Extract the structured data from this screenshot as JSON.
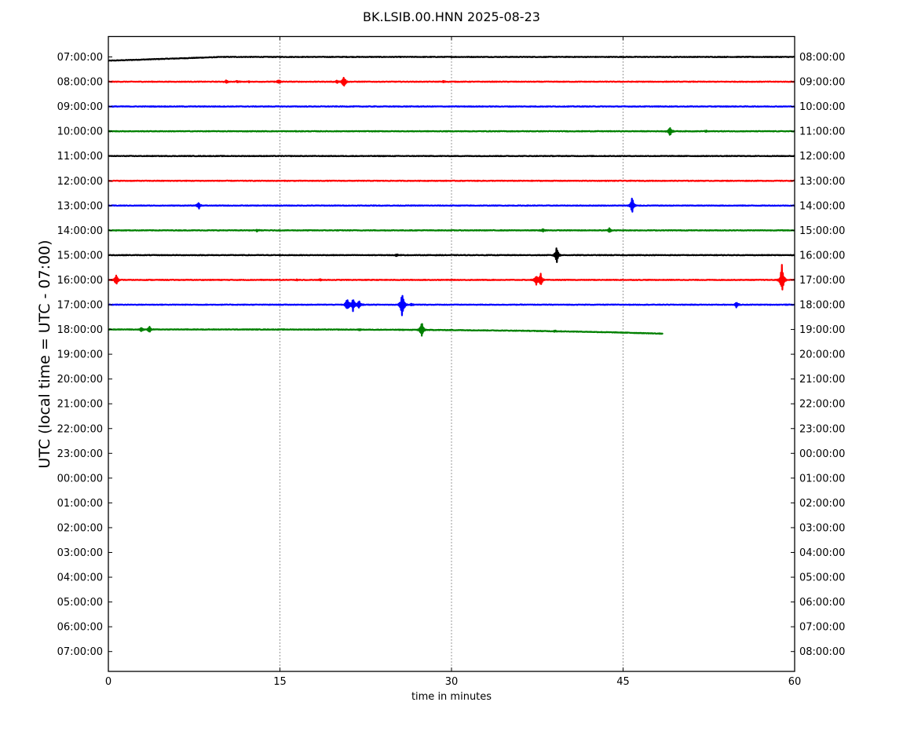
{
  "chart_data": {
    "type": "line",
    "title": "BK.LSIB.00.HNN 2025-08-23",
    "xlabel": "time in minutes",
    "ylabel": "UTC (local time = UTC - 07:00)",
    "xlim": [
      0,
      60
    ],
    "x_ticks": [
      0,
      15,
      30,
      45,
      60
    ],
    "x_tick_labels": [
      "0",
      "15",
      "30",
      "45",
      "60"
    ],
    "grid": "vertical dotted lines at 15, 30, 45",
    "left_tick_labels": [
      "07:00:00",
      "08:00:00",
      "09:00:00",
      "10:00:00",
      "11:00:00",
      "12:00:00",
      "13:00:00",
      "14:00:00",
      "15:00:00",
      "16:00:00",
      "17:00:00",
      "18:00:00",
      "19:00:00",
      "20:00:00",
      "21:00:00",
      "22:00:00",
      "23:00:00",
      "00:00:00",
      "01:00:00",
      "02:00:00",
      "03:00:00",
      "04:00:00",
      "05:00:00",
      "06:00:00",
      "07:00:00"
    ],
    "right_tick_labels": [
      "08:00:00",
      "09:00:00",
      "10:00:00",
      "11:00:00",
      "12:00:00",
      "13:00:00",
      "14:00:00",
      "15:00:00",
      "16:00:00",
      "17:00:00",
      "18:00:00",
      "19:00:00",
      "20:00:00",
      "21:00:00",
      "22:00:00",
      "23:00:00",
      "00:00:00",
      "01:00:00",
      "02:00:00",
      "03:00:00",
      "04:00:00",
      "05:00:00",
      "06:00:00",
      "07:00:00",
      "08:00:00"
    ],
    "series": [
      {
        "row": 0,
        "color": "#000000",
        "x_end": 60,
        "drift_start": -0.4,
        "drift_end": 0,
        "events": []
      },
      {
        "row": 1,
        "color": "#ff0000",
        "x_end": 60,
        "drift_start": 0,
        "drift_end": 0,
        "events": [
          [
            10.3,
            0.15
          ],
          [
            11.3,
            0.1
          ],
          [
            12.3,
            0.08
          ],
          [
            14.9,
            0.2
          ],
          [
            20.0,
            0.12
          ],
          [
            20.6,
            0.7
          ],
          [
            29.3,
            0.1
          ]
        ]
      },
      {
        "row": 2,
        "color": "#0000ff",
        "x_end": 60,
        "drift_start": 0,
        "drift_end": 0,
        "events": []
      },
      {
        "row": 3,
        "color": "#008000",
        "x_end": 60,
        "drift_start": 0,
        "drift_end": 0,
        "events": [
          [
            49.1,
            0.5
          ],
          [
            52.3,
            0.08
          ]
        ]
      },
      {
        "row": 4,
        "color": "#000000",
        "x_end": 60,
        "drift_start": 0,
        "drift_end": 0,
        "events": []
      },
      {
        "row": 5,
        "color": "#ff0000",
        "x_end": 60,
        "drift_start": 0,
        "drift_end": 0,
        "events": []
      },
      {
        "row": 6,
        "color": "#0000ff",
        "x_end": 60,
        "drift_start": 0,
        "drift_end": 0,
        "events": [
          [
            7.9,
            0.35
          ],
          [
            45.8,
            0.9
          ]
        ]
      },
      {
        "row": 7,
        "color": "#008000",
        "x_end": 60,
        "drift_start": 0,
        "drift_end": 0,
        "events": [
          [
            13.0,
            0.1
          ],
          [
            38.0,
            0.15
          ],
          [
            43.8,
            0.25
          ]
        ]
      },
      {
        "row": 8,
        "color": "#000000",
        "x_end": 60,
        "drift_start": 0,
        "drift_end": 0,
        "events": [
          [
            25.2,
            0.12
          ],
          [
            39.2,
            0.9
          ]
        ]
      },
      {
        "row": 9,
        "color": "#ff0000",
        "x_end": 60,
        "drift_start": 0,
        "drift_end": 0,
        "events": [
          [
            0.7,
            0.55
          ],
          [
            16.5,
            0.08
          ],
          [
            18.5,
            0.08
          ],
          [
            37.4,
            0.5
          ],
          [
            37.8,
            0.7
          ],
          [
            58.9,
            1.8
          ]
        ]
      },
      {
        "row": 10,
        "color": "#0000ff",
        "x_end": 60,
        "drift_start": 0,
        "drift_end": 0,
        "events": [
          [
            20.9,
            0.8
          ],
          [
            21.4,
            0.7
          ],
          [
            21.9,
            0.45
          ],
          [
            25.7,
            1.6
          ],
          [
            26.5,
            0.12
          ],
          [
            54.9,
            0.3
          ]
        ]
      },
      {
        "row": 11,
        "color": "#008000",
        "x_end": 48.5,
        "drift_start": 0,
        "drift_end": -0.45,
        "events": [
          [
            2.9,
            0.25
          ],
          [
            3.6,
            0.3
          ],
          [
            27.4,
            0.85
          ],
          [
            22.0,
            0.08
          ],
          [
            39.0,
            0.1
          ]
        ]
      }
    ]
  }
}
